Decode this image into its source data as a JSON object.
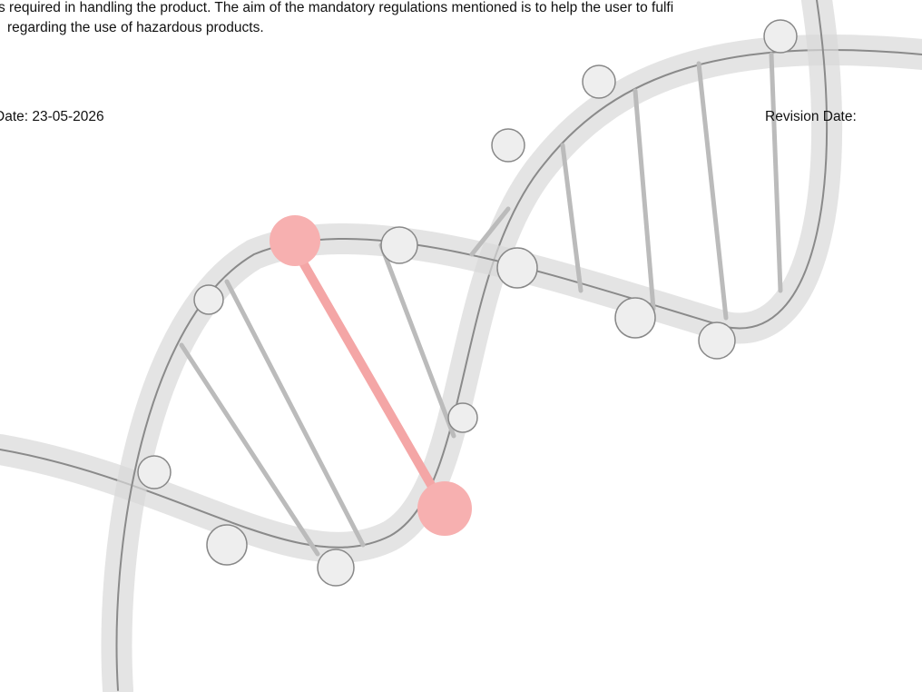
{
  "body": {
    "lines": [
      "s required in handling the product. The aim of the mandatory regulations mentioned is to help the user to fulfi",
      "regarding the use of hazardous products."
    ]
  },
  "footer": {
    "date": "Date: 23-05-2026",
    "revision": "Revision Date:"
  }
}
